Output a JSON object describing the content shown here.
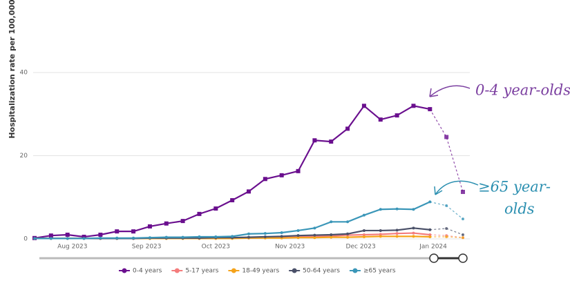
{
  "chart_data": {
    "type": "line",
    "y_label": "Hospitalization rate per 100,000",
    "categories": [
      null,
      null,
      null,
      null,
      null,
      null,
      null,
      null,
      null,
      null,
      null,
      null,
      null,
      null,
      null,
      null,
      null,
      null,
      null,
      null,
      null,
      null,
      null,
      null,
      null,
      null,
      null
    ],
    "xticks": [
      {
        "value": 2.3,
        "label": "Aug 2023"
      },
      {
        "value": 6.8,
        "label": "Sep 2023"
      },
      {
        "value": 11.0,
        "label": "Oct 2023"
      },
      {
        "value": 15.5,
        "label": "Nov 2023"
      },
      {
        "value": 19.8,
        "label": "Dec 2023"
      },
      {
        "value": 24.2,
        "label": "Jan 2024"
      }
    ],
    "ylim": [
      0,
      45
    ],
    "yticks": [
      0,
      20,
      40
    ],
    "grid": true,
    "dashed_from": 24,
    "series": [
      {
        "name": "0-4 years",
        "color": "#6a0f8e",
        "marker": "square",
        "values": [
          0.2,
          0.8,
          1.0,
          0.5,
          1.0,
          1.8,
          1.8,
          3.0,
          3.7,
          4.3,
          6.0,
          7.3,
          9.3,
          11.4,
          14.4,
          15.3,
          16.3,
          23.7,
          23.4,
          26.5,
          32.0,
          28.7,
          29.7,
          32.0,
          31.2,
          24.5,
          11.3
        ]
      },
      {
        "name": "5-17 years",
        "color": "#f47c7c",
        "marker": "circle",
        "values": [
          0.1,
          0.1,
          0.1,
          0.1,
          0.1,
          0.1,
          0.1,
          0.1,
          0.1,
          0.1,
          0.1,
          0.1,
          0.2,
          0.2,
          0.3,
          0.3,
          0.5,
          0.6,
          0.7,
          0.9,
          1.0,
          1.1,
          1.3,
          1.4,
          1.0,
          0.8,
          0.3
        ]
      },
      {
        "name": "18-49 years",
        "color": "#f5a31a",
        "marker": "circle",
        "values": [
          0.1,
          0.1,
          0.1,
          0.1,
          0.1,
          0.1,
          0.1,
          0.1,
          0.1,
          0.1,
          0.1,
          0.1,
          0.1,
          0.2,
          0.2,
          0.2,
          0.3,
          0.3,
          0.4,
          0.4,
          0.5,
          0.6,
          0.6,
          0.6,
          0.5,
          0.5,
          0.3
        ]
      },
      {
        "name": "50-64 years",
        "color": "#4a5068",
        "marker": "circle",
        "values": [
          0.1,
          0.1,
          0.1,
          0.1,
          0.1,
          0.1,
          0.1,
          0.2,
          0.2,
          0.2,
          0.2,
          0.3,
          0.3,
          0.4,
          0.5,
          0.6,
          0.8,
          0.9,
          1.0,
          1.2,
          2.0,
          2.0,
          2.1,
          2.6,
          2.2,
          2.5,
          1.0
        ]
      },
      {
        "name": "≥65 years",
        "color": "#3a96b8",
        "marker": "circle",
        "values": [
          0.1,
          0.1,
          0.1,
          0.1,
          0.2,
          0.2,
          0.2,
          0.3,
          0.4,
          0.4,
          0.5,
          0.5,
          0.6,
          1.2,
          1.3,
          1.5,
          2.0,
          2.6,
          4.1,
          4.1,
          5.7,
          7.1,
          7.2,
          7.1,
          8.9,
          8.0,
          4.8
        ]
      }
    ],
    "annotations": [
      {
        "lines": [
          "0-4 year-olds"
        ],
        "color": "#7b3fa0"
      },
      {
        "lines": [
          "≥65 year-",
          "olds"
        ],
        "color": "#2b8fb0"
      }
    ]
  }
}
